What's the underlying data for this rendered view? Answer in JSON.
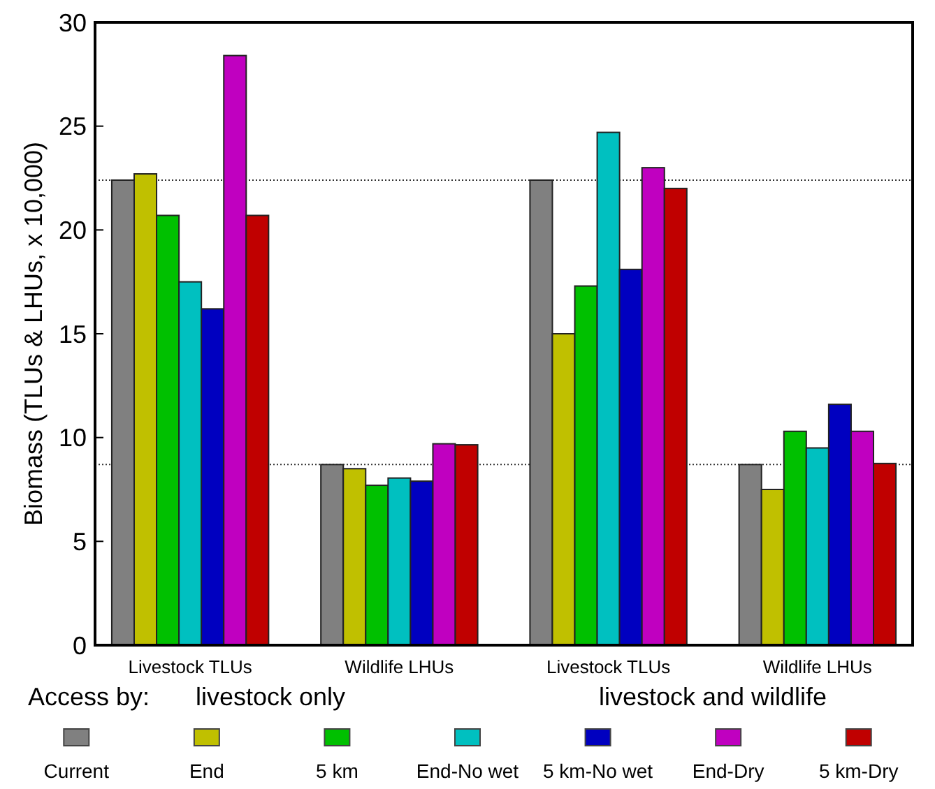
{
  "chart_data": {
    "type": "bar",
    "ylabel": "Biomass  (TLUs & LHUs, x 10,000)",
    "categories": [
      "Livestock TLUs",
      "Wildlife LHUs",
      "Livestock TLUs",
      "Wildlife LHUs"
    ],
    "series": [
      {
        "name": "Current",
        "color": "#808080",
        "values": [
          22.4,
          8.7,
          22.4,
          8.7
        ]
      },
      {
        "name": "End",
        "color": "#c0c000",
        "values": [
          22.7,
          8.5,
          15.0,
          7.5
        ]
      },
      {
        "name": "5 km",
        "color": "#00c000",
        "values": [
          20.7,
          7.7,
          17.3,
          10.3
        ]
      },
      {
        "name": "End-No wet",
        "color": "#00c0c0",
        "values": [
          17.5,
          8.05,
          24.7,
          9.5
        ]
      },
      {
        "name": "5 km-No wet",
        "color": "#0000c0",
        "values": [
          16.2,
          7.9,
          18.1,
          11.6
        ]
      },
      {
        "name": "End-Dry",
        "color": "#c000c0",
        "values": [
          28.4,
          9.7,
          23.0,
          10.3
        ]
      },
      {
        "name": "5 km-Dry",
        "color": "#c00000",
        "values": [
          20.7,
          9.65,
          22.0,
          8.75
        ]
      }
    ],
    "ylim": [
      0,
      30
    ],
    "yticks": [
      0,
      5,
      10,
      15,
      20,
      25,
      30
    ],
    "ref_lines": [
      {
        "axis": "y",
        "value": 22.4,
        "line_style": "dotted"
      },
      {
        "axis": "y",
        "value": 8.7,
        "line_style": "dotted"
      }
    ],
    "annotations": [
      "Access by:",
      "livestock only",
      "livestock and wildlife"
    ],
    "legend": "bottom"
  }
}
